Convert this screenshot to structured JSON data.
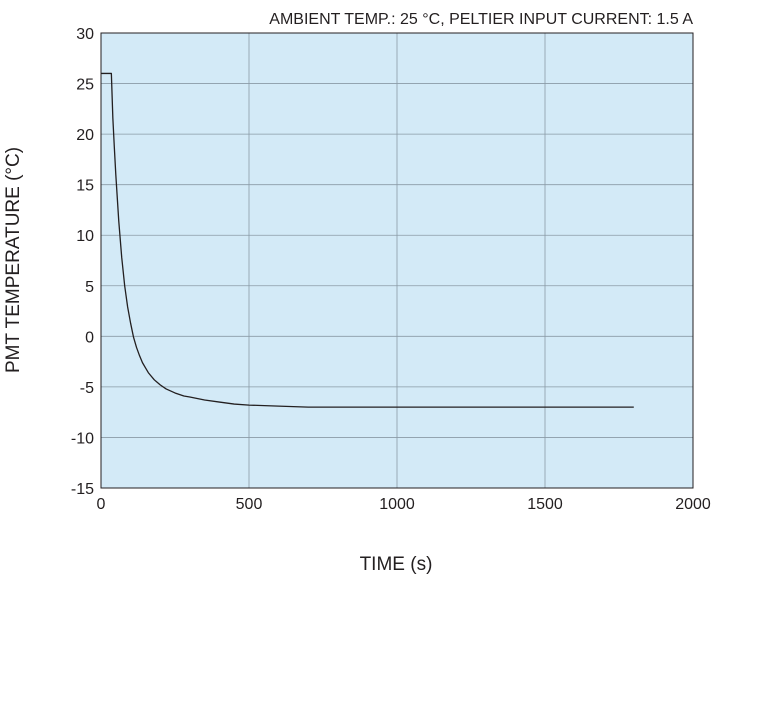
{
  "chart_data": {
    "type": "line",
    "subtitle": "AMBIENT TEMP.: 25 °C, PELTIER INPUT CURRENT: 1.5 A",
    "xlabel": "TIME (s)",
    "ylabel": "PMT TEMPERATURE (°C)",
    "xlim": [
      0,
      2000
    ],
    "ylim": [
      -15,
      30
    ],
    "xticks": [
      "0",
      "500",
      "1000",
      "1500",
      "2000"
    ],
    "yticks": [
      "30",
      "25",
      "20",
      "15",
      "10",
      "5",
      "0",
      "-5",
      "-10",
      "-15"
    ],
    "grid": true,
    "plot_background": "#d3eaf7",
    "grid_color": "#8a9aa6",
    "line_color": "#231f20",
    "series": [
      {
        "x": [
          0,
          35,
          40,
          45,
          50,
          60,
          70,
          80,
          90,
          100,
          110,
          120,
          130,
          140,
          150,
          160,
          180,
          200,
          220,
          250,
          280,
          300,
          350,
          400,
          450,
          500,
          600,
          700,
          800,
          900,
          1000,
          1100,
          1200,
          1300,
          1400,
          1500,
          1600,
          1700,
          1800
        ],
        "y": [
          26,
          26,
          21.6,
          18.7,
          16.0,
          11.4,
          7.8,
          5.0,
          2.9,
          1.3,
          -0.1,
          -1.1,
          -1.9,
          -2.6,
          -3.1,
          -3.6,
          -4.3,
          -4.8,
          -5.2,
          -5.6,
          -5.9,
          -6.0,
          -6.3,
          -6.5,
          -6.7,
          -6.8,
          -6.9,
          -7.0,
          -7.0,
          -7.0,
          -7.0,
          -7.0,
          -7.0,
          -7.0,
          -7.0,
          -7.0,
          -7.0,
          -7.0,
          -7.0
        ]
      }
    ]
  }
}
